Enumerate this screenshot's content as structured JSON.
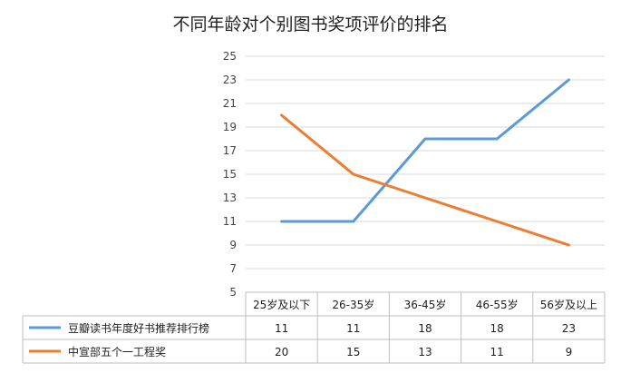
{
  "chart_data": {
    "type": "line",
    "title": "不同年龄对个别图书奖项评价的排名",
    "categories": [
      "25岁及以下",
      "26-35岁",
      "36-45岁",
      "46-55岁",
      "56岁及以上"
    ],
    "series": [
      {
        "name": "豆瓣读书年度好书推荐排行榜",
        "color": "#5b9bd5",
        "values": [
          11,
          11,
          18,
          18,
          23
        ]
      },
      {
        "name": "中宣部五个一工程奖",
        "color": "#ed7d31",
        "values": [
          20,
          15,
          13,
          11,
          9
        ]
      }
    ],
    "ylim": [
      5,
      25
    ],
    "yticks": [
      5,
      7,
      9,
      11,
      13,
      15,
      17,
      19,
      21,
      23,
      25
    ],
    "grid": true,
    "legend": "data-table"
  }
}
